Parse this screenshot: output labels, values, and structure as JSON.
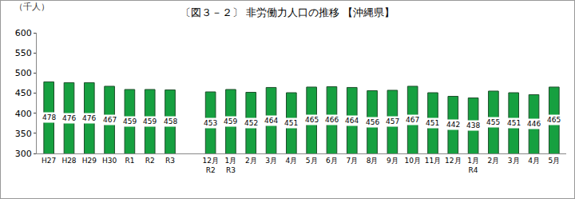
{
  "chart_data": {
    "type": "bar",
    "title": "〔図３－２〕 非労働力人口の推移 【沖縄県】",
    "ylabel": "（千人）",
    "categories": [
      "H27",
      "H28",
      "H29",
      "H30",
      "R1",
      "R2",
      "R3",
      null,
      "12月\nR2",
      "1月\nR3",
      "2月",
      "3月",
      "4月",
      "5月",
      "6月",
      "7月",
      "8月",
      "9月",
      "10月",
      "11月",
      "12月",
      "1月\nR4",
      "2月",
      "3月",
      "4月",
      "5月"
    ],
    "values": [
      478,
      476,
      476,
      467,
      459,
      459,
      458,
      null,
      453,
      459,
      452,
      464,
      451,
      465,
      466,
      464,
      456,
      457,
      467,
      451,
      442,
      438,
      455,
      451,
      446,
      465
    ],
    "color": "#16a040",
    "ylim": [
      300,
      600
    ],
    "yticks": [
      300,
      350,
      400,
      450,
      500,
      550,
      600
    ],
    "grid": false,
    "data_labels": true
  }
}
